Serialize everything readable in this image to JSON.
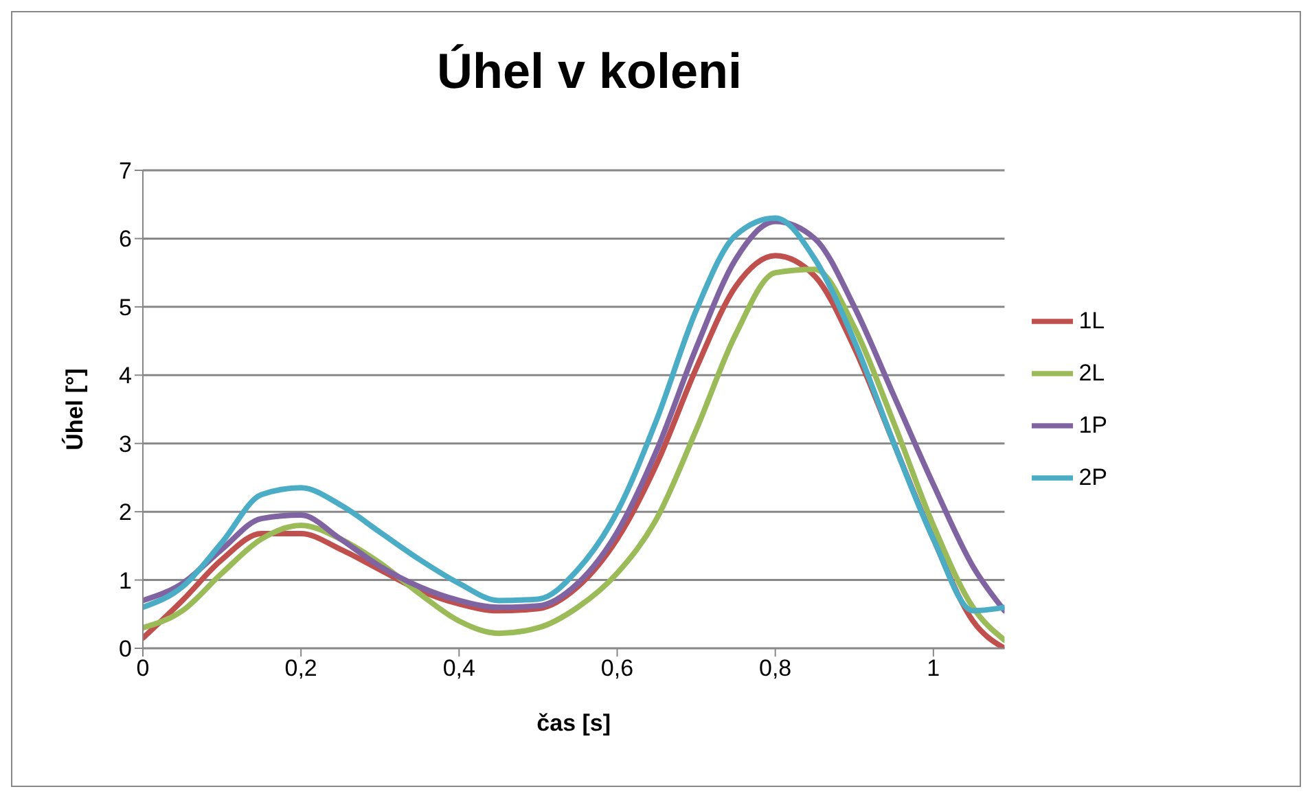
{
  "chart_data": {
    "type": "line",
    "title": "Úhel v koleni",
    "xlabel": "čas  [s]",
    "ylabel": "Úhel [°]",
    "x": [
      0,
      0.05,
      0.1,
      0.15,
      0.2,
      0.25,
      0.3,
      0.35,
      0.4,
      0.45,
      0.5,
      0.55,
      0.6,
      0.65,
      0.7,
      0.75,
      0.8,
      0.85,
      0.9,
      0.95,
      1.0,
      1.05,
      1.09
    ],
    "series": [
      {
        "name": "1L",
        "color": "#c0504d",
        "values": [
          0.15,
          0.7,
          1.3,
          1.68,
          1.68,
          1.45,
          1.15,
          0.85,
          0.65,
          0.55,
          0.58,
          0.9,
          1.6,
          2.7,
          4.1,
          5.3,
          5.75,
          5.45,
          4.4,
          3.0,
          1.6,
          0.4,
          0.0
        ]
      },
      {
        "name": "2L",
        "color": "#9bbb59",
        "values": [
          0.3,
          0.55,
          1.1,
          1.6,
          1.8,
          1.6,
          1.25,
          0.8,
          0.4,
          0.22,
          0.3,
          0.6,
          1.1,
          1.9,
          3.2,
          4.6,
          5.5,
          5.55,
          4.7,
          3.3,
          1.8,
          0.6,
          0.12
        ]
      },
      {
        "name": "1P",
        "color": "#8064a2",
        "values": [
          0.7,
          0.95,
          1.45,
          1.9,
          1.95,
          1.6,
          1.2,
          0.9,
          0.7,
          0.6,
          0.62,
          0.95,
          1.7,
          2.9,
          4.4,
          5.7,
          6.25,
          6.0,
          5.0,
          3.7,
          2.4,
          1.2,
          0.55
        ]
      },
      {
        "name": "2P",
        "color": "#4bacc6",
        "values": [
          0.6,
          0.9,
          1.55,
          2.25,
          2.35,
          2.1,
          1.7,
          1.3,
          0.95,
          0.7,
          0.72,
          1.15,
          2.0,
          3.35,
          4.95,
          6.05,
          6.3,
          5.7,
          4.5,
          3.0,
          1.6,
          0.55,
          0.6
        ]
      }
    ],
    "xlim": [
      0,
      1.09
    ],
    "xticks": [
      {
        "value": 0,
        "label": "0"
      },
      {
        "value": 0.2,
        "label": "0,2"
      },
      {
        "value": 0.4,
        "label": "0,4"
      },
      {
        "value": 0.6,
        "label": "0,6"
      },
      {
        "value": 0.8,
        "label": "0,8"
      },
      {
        "value": 1,
        "label": "1"
      }
    ],
    "ylim": [
      0,
      7
    ],
    "yticks": [
      0,
      1,
      2,
      3,
      4,
      5,
      6,
      7
    ],
    "grid": "y",
    "legend": "right",
    "marker": "none",
    "line_style": "solid"
  }
}
